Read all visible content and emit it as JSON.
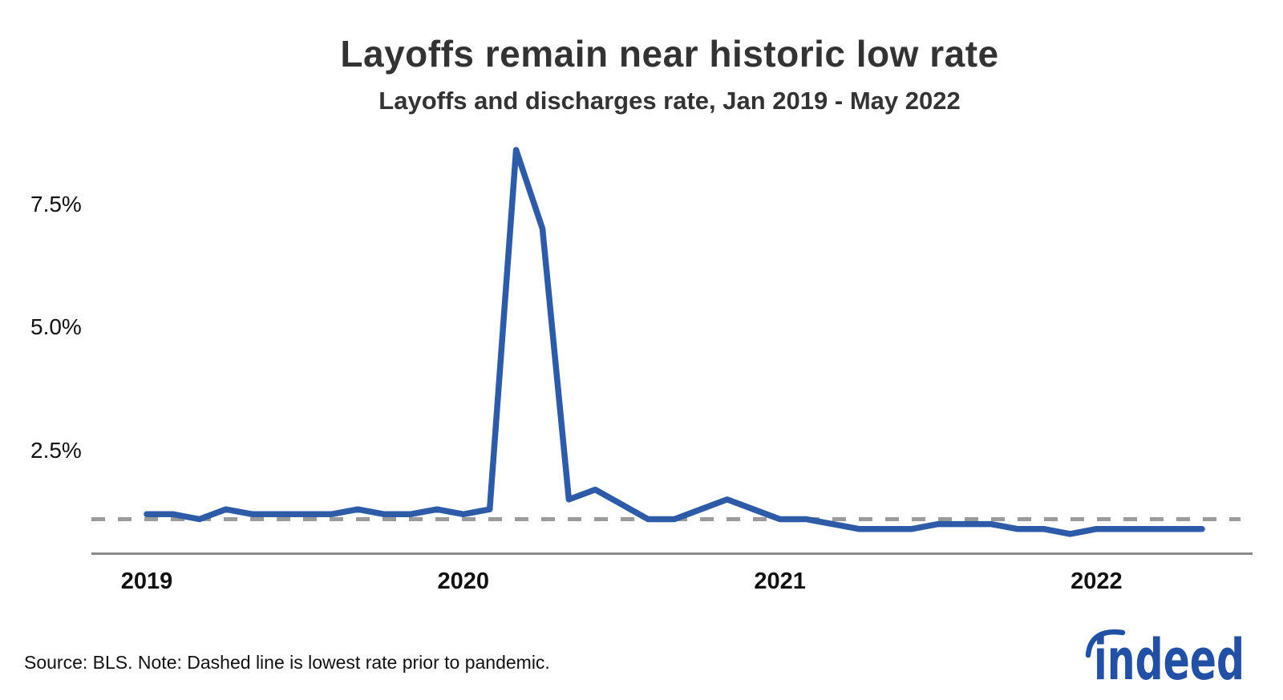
{
  "chart_data": {
    "type": "line",
    "title": "Layoffs remain near historic low rate",
    "subtitle": "Layoffs and discharges rate, Jan 2019 - May 2022",
    "xlabel": "",
    "ylabel": "",
    "ylim": [
      0.4,
      8.9
    ],
    "grid": false,
    "legend": false,
    "x": [
      "2019-01",
      "2019-02",
      "2019-03",
      "2019-04",
      "2019-05",
      "2019-06",
      "2019-07",
      "2019-08",
      "2019-09",
      "2019-10",
      "2019-11",
      "2019-12",
      "2020-01",
      "2020-02",
      "2020-03",
      "2020-04",
      "2020-05",
      "2020-06",
      "2020-07",
      "2020-08",
      "2020-09",
      "2020-10",
      "2020-11",
      "2020-12",
      "2021-01",
      "2021-02",
      "2021-03",
      "2021-04",
      "2021-05",
      "2021-06",
      "2021-07",
      "2021-08",
      "2021-09",
      "2021-10",
      "2021-11",
      "2021-12",
      "2022-01",
      "2022-02",
      "2022-03",
      "2022-04",
      "2022-05"
    ],
    "series": [
      {
        "name": "Layoffs and discharges rate",
        "color": "#2d5ba7",
        "values": [
          1.2,
          1.2,
          1.1,
          1.3,
          1.2,
          1.2,
          1.2,
          1.2,
          1.3,
          1.2,
          1.2,
          1.3,
          1.2,
          1.3,
          8.6,
          7.0,
          1.5,
          1.7,
          1.4,
          1.1,
          1.1,
          1.3,
          1.5,
          1.3,
          1.1,
          1.1,
          1.0,
          0.9,
          0.9,
          0.9,
          1.0,
          1.0,
          1.0,
          0.9,
          0.9,
          0.8,
          0.9,
          0.9,
          0.9,
          0.9,
          0.9
        ]
      }
    ],
    "y_ticks": [
      {
        "value": 2.5,
        "label": "2.5%"
      },
      {
        "value": 5.0,
        "label": "5.0%"
      },
      {
        "value": 7.5,
        "label": "7.5%"
      }
    ],
    "x_ticks": [
      {
        "label": "2019",
        "month_index": 0
      },
      {
        "label": "2020",
        "month_index": 12
      },
      {
        "label": "2021",
        "month_index": 24
      },
      {
        "label": "2022",
        "month_index": 36
      }
    ],
    "reference_line": {
      "value": 1.1,
      "label": "Lowest rate prior to pandemic",
      "style": "dashed",
      "color": "#9b9b9b"
    }
  },
  "footer": {
    "source_note": "Source: BLS. Note: Dashed line is lowest rate prior to pandemic.",
    "logo_text": "indeed"
  },
  "colors": {
    "series_blue": "#2d5ba7",
    "logo_blue": "#2150a5",
    "axis_gray": "#8a8a8a",
    "dash_gray": "#9b9b9b",
    "title_gray": "#333333",
    "text_dark": "#111111"
  }
}
